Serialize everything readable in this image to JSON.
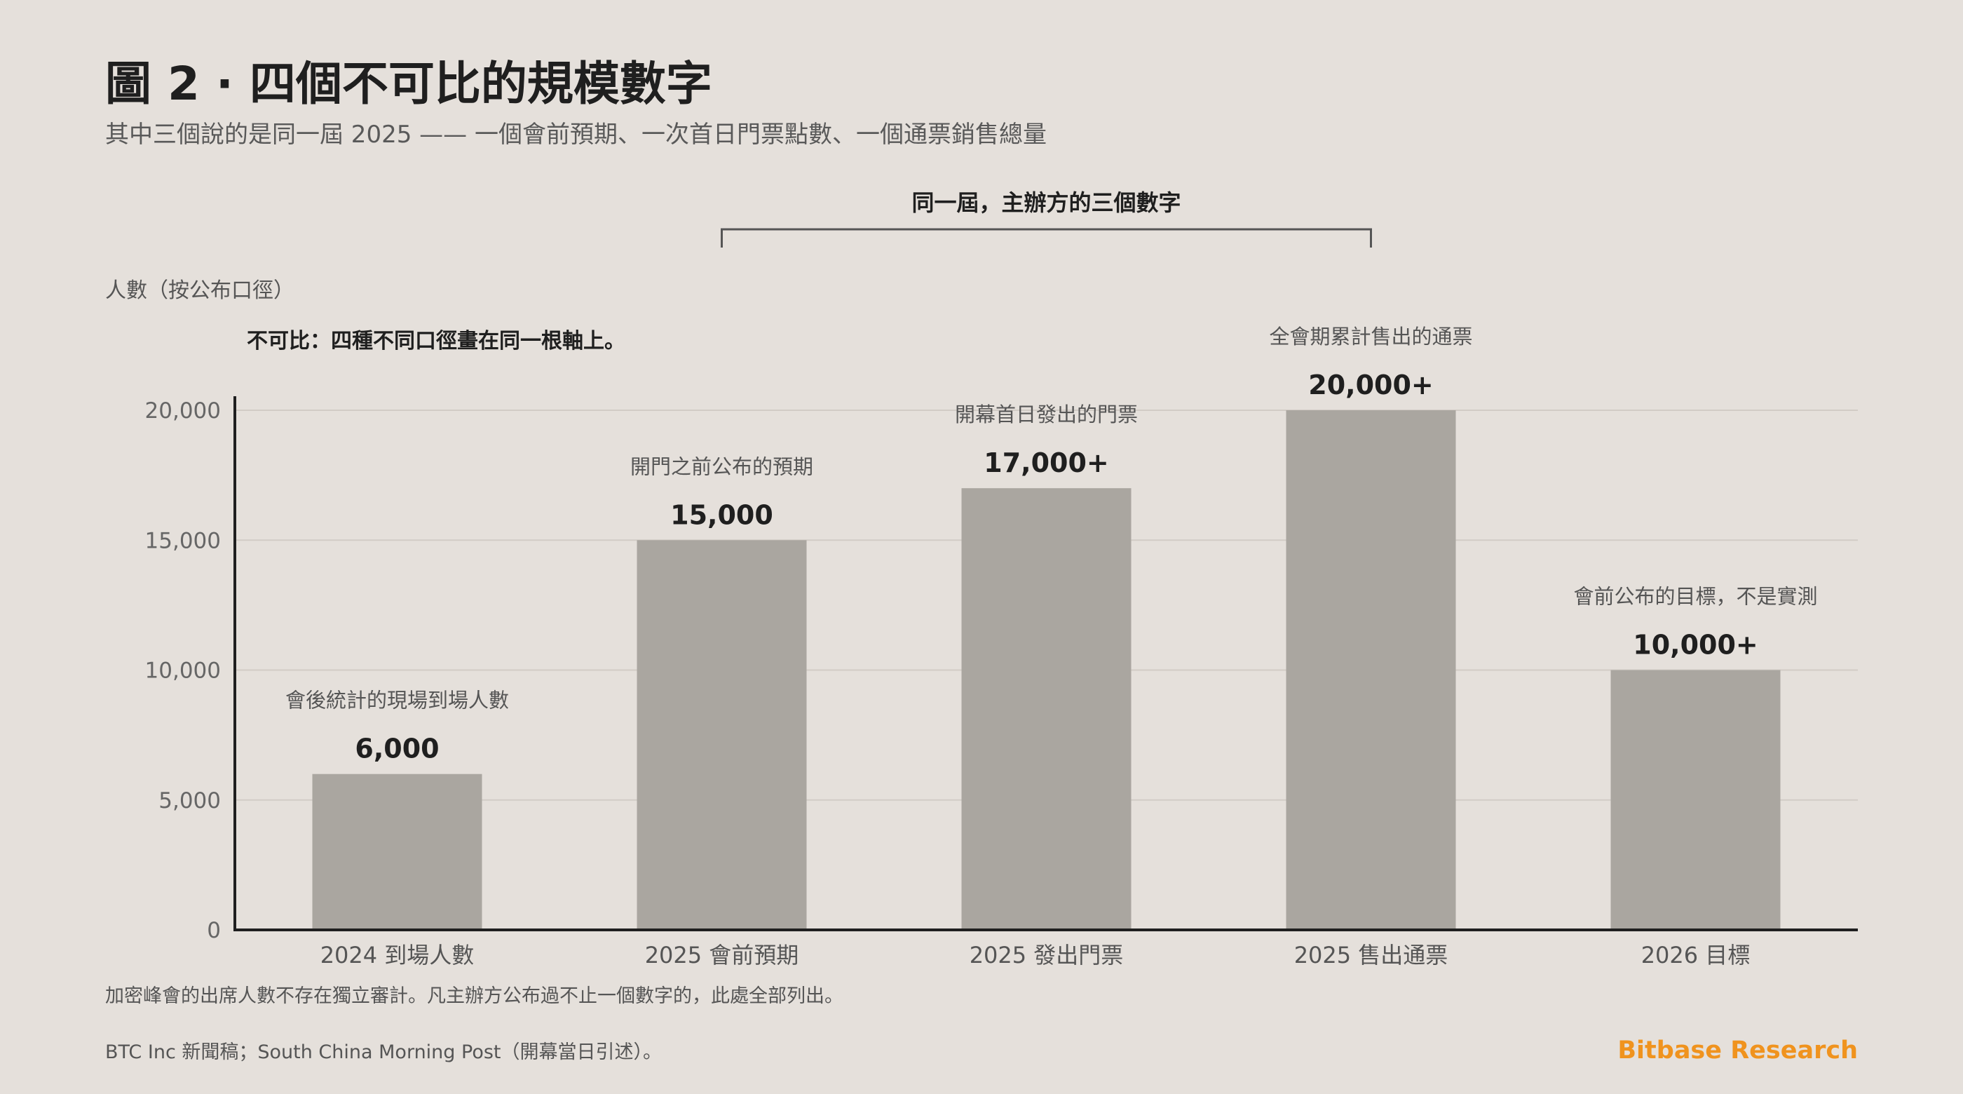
{
  "header": {
    "title": "圖 2 · 四個不可比的規模數字",
    "subtitle": "其中三個說的是同一屆 2025 —— 一個會前預期、一次首日門票點數、一個通票銷售總量"
  },
  "chart_data": {
    "type": "bar",
    "ylabel": "人數（按公布口徑）",
    "ylim": [
      0,
      20000
    ],
    "yticks": [
      0,
      5000,
      10000,
      15000,
      20000
    ],
    "ytick_labels": [
      "0",
      "5,000",
      "10,000",
      "15,000",
      "20,000"
    ],
    "grid": true,
    "categories": [
      "2024 到場人數",
      "2025 會前預期",
      "2025 發出門票",
      "2025 售出通票",
      "2026 目標"
    ],
    "values": [
      6000,
      15000,
      17000,
      20000,
      10000
    ],
    "value_labels": [
      "6,000",
      "15,000",
      "17,000+",
      "20,000+",
      "10,000+"
    ],
    "bar_notes": [
      "會後統計的現場到場人數",
      "開門之前公布的預期",
      "開幕首日發出的門票",
      "全會期累計售出的通票",
      "會前公布的目標，不是實測"
    ],
    "bracket_label": "同一屆，主辦方的三個數字",
    "bracket_span": [
      1,
      3
    ],
    "annotation": "不可比：四種不同口徑畫在同一根軸上。",
    "bar_color": "#aaa6a0"
  },
  "footer": {
    "note": "加密峰會的出席人數不存在獨立審計。凡主辦方公布過不止一個數字的，此處全部列出。",
    "source": "BTC Inc 新聞稿；South China Morning Post（開幕當日引述）。",
    "brand": "Bitbase Research",
    "brand_color": "#f0931e"
  }
}
